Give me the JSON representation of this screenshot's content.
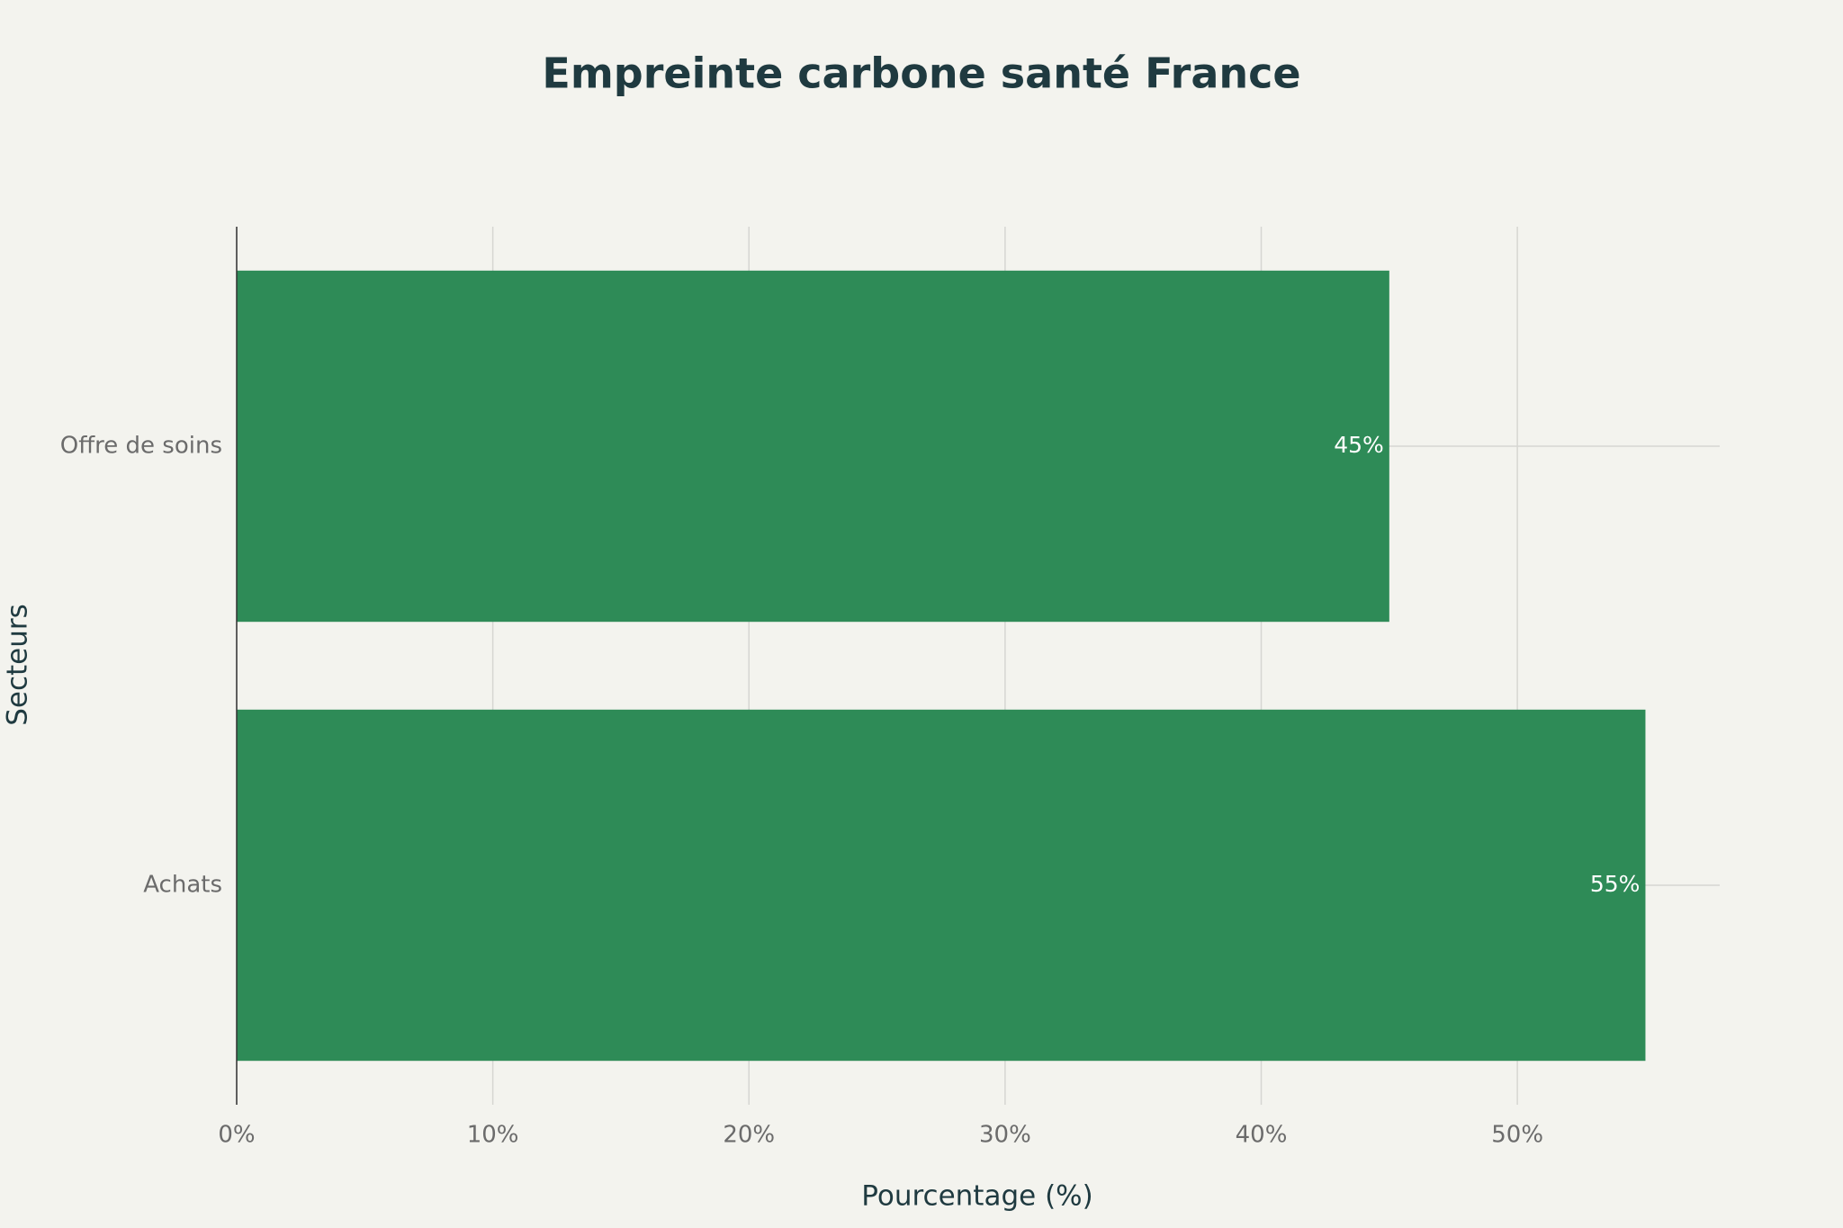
{
  "chart_data": {
    "type": "hbar",
    "title": "Empreinte carbone santé France",
    "x_label": "Pourcentage (%)",
    "y_label": "Secteurs",
    "categories": [
      "Offre de soins",
      "Achats"
    ],
    "values": [
      45,
      55
    ],
    "value_labels": [
      "45%",
      "55%"
    ],
    "color": "#2e8b57",
    "xlim": [
      0,
      57.9
    ],
    "xticks": [
      {
        "value": 0,
        "label": "0%"
      },
      {
        "value": 10,
        "label": "10%"
      },
      {
        "value": 20,
        "label": "20%"
      },
      {
        "value": 30,
        "label": "30%"
      },
      {
        "value": 40,
        "label": "40%"
      },
      {
        "value": 50,
        "label": "50%"
      }
    ],
    "grid": true
  }
}
